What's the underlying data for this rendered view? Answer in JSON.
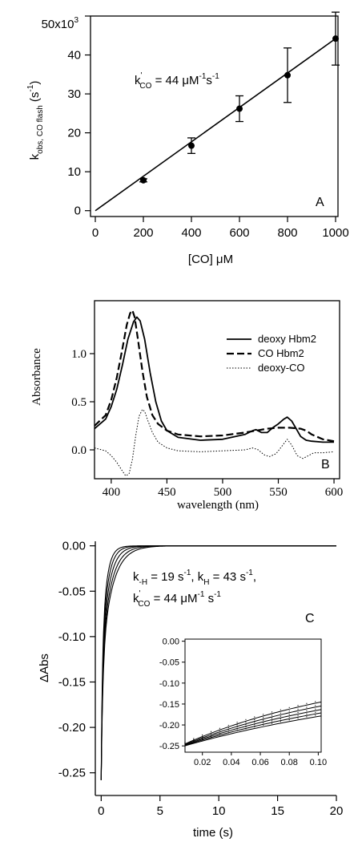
{
  "chart_data": [
    {
      "type": "scatter",
      "panel_label": "A",
      "xlabel": "[CO] μM",
      "ylabel_main": "k",
      "ylabel_sub": "obs, CO flash",
      "ylabel_unit_pre": " (s",
      "ylabel_unit_sup": "-1",
      "ylabel_unit_post": ")",
      "xlim": [
        -20,
        1010
      ],
      "ylim": [
        -1.5,
        50
      ],
      "xticks": [
        0,
        200,
        400,
        600,
        800,
        1000
      ],
      "yticks": [
        0,
        10,
        20,
        30,
        40
      ],
      "y_top_tick_label": "50x10",
      "y_top_tick_exp": "3",
      "points": [
        {
          "x": 200,
          "y": 7.8,
          "err": 0.4
        },
        {
          "x": 400,
          "y": 16.7,
          "err": 2.0
        },
        {
          "x": 600,
          "y": 26.2,
          "err": 3.3
        },
        {
          "x": 800,
          "y": 34.8,
          "err": 7.0
        },
        {
          "x": 1000,
          "y": 44.2,
          "err": 6.8
        }
      ],
      "fit_line": {
        "x": [
          0,
          1000
        ],
        "y": [
          0,
          44.2
        ]
      },
      "annotation": {
        "k_main": "k",
        "k_prime": "'",
        "k_sub": "CO",
        "text": " = 44 μM",
        "sup1": "-1",
        "mid": "s",
        "sup2": "-1"
      }
    },
    {
      "type": "line",
      "panel_label": "B",
      "xlabel": "wavelength (nm)",
      "ylabel": "Absorbance",
      "xlim": [
        385,
        605
      ],
      "ylim": [
        -0.3,
        1.55
      ],
      "xticks": [
        400,
        450,
        500,
        550,
        600
      ],
      "yticks": [
        0.0,
        0.5,
        1.0
      ],
      "ytick_labels": [
        "0.0",
        "0.5",
        "1.0"
      ],
      "legend": {
        "position": "top-right"
      },
      "series": [
        {
          "name": "deoxy Hbm2",
          "style": "solid",
          "x": [
            385,
            395,
            400,
            405,
            410,
            415,
            420,
            423,
            426,
            430,
            435,
            440,
            445,
            450,
            460,
            480,
            500,
            520,
            527,
            530,
            535,
            540,
            545,
            550,
            555,
            558,
            562,
            566,
            570,
            575,
            580,
            590,
            600
          ],
          "y": [
            0.22,
            0.32,
            0.45,
            0.63,
            0.88,
            1.15,
            1.33,
            1.38,
            1.34,
            1.15,
            0.8,
            0.5,
            0.3,
            0.2,
            0.13,
            0.1,
            0.11,
            0.16,
            0.2,
            0.21,
            0.18,
            0.18,
            0.23,
            0.27,
            0.32,
            0.34,
            0.3,
            0.22,
            0.14,
            0.1,
            0.09,
            0.08,
            0.08
          ]
        },
        {
          "name": "CO Hbm2",
          "style": "dashed",
          "x": [
            385,
            395,
            400,
            405,
            410,
            414,
            417,
            419,
            421,
            424,
            428,
            432,
            437,
            442,
            450,
            460,
            480,
            500,
            520,
            530,
            540,
            550,
            560,
            570,
            575,
            580,
            590,
            600
          ],
          "y": [
            0.25,
            0.36,
            0.52,
            0.75,
            1.05,
            1.3,
            1.42,
            1.45,
            1.38,
            1.15,
            0.82,
            0.55,
            0.36,
            0.27,
            0.2,
            0.16,
            0.14,
            0.15,
            0.18,
            0.2,
            0.22,
            0.23,
            0.23,
            0.22,
            0.2,
            0.16,
            0.11,
            0.09
          ]
        },
        {
          "name": "deoxy-CO",
          "style": "dotted",
          "x": [
            385,
            395,
            400,
            405,
            410,
            413,
            416,
            419,
            422,
            425,
            428,
            430,
            433,
            437,
            442,
            450,
            460,
            480,
            500,
            520,
            527,
            532,
            537,
            542,
            548,
            554,
            558,
            562,
            567,
            572,
            577,
            582,
            590,
            600
          ],
          "y": [
            0.02,
            -0.01,
            -0.06,
            -0.13,
            -0.22,
            -0.27,
            -0.25,
            -0.1,
            0.15,
            0.35,
            0.42,
            0.4,
            0.3,
            0.18,
            0.08,
            0.02,
            -0.01,
            -0.02,
            -0.01,
            0.0,
            0.02,
            0.0,
            -0.05,
            -0.07,
            -0.04,
            0.05,
            0.11,
            0.05,
            -0.06,
            -0.09,
            -0.06,
            -0.03,
            -0.03,
            -0.02
          ]
        }
      ]
    },
    {
      "type": "line",
      "panel_label": "C",
      "xlabel": "time (s)",
      "ylabel": "ΔAbs",
      "xlim": [
        -0.5,
        20
      ],
      "ylim": [
        -0.275,
        0.005
      ],
      "xticks": [
        0,
        5,
        10,
        15,
        20
      ],
      "yticks": [
        0.0,
        -0.05,
        -0.1,
        -0.15,
        -0.2,
        -0.25
      ],
      "ytick_labels": [
        "0.00",
        "-0.05",
        "-0.10",
        "-0.15",
        "-0.20",
        "-0.25"
      ],
      "annotation_line1": {
        "k1_main": "k",
        "k1_sub": "-H",
        "k1_text": " = 19 s",
        "k1_sup": "-1",
        "sep": ", ",
        "k2_main": "k",
        "k2_sub": "H",
        "k2_text": " = 43 s",
        "k2_sup": "-1",
        "end": ","
      },
      "annotation_line2": {
        "k_main": "k",
        "k_prime": "'",
        "k_sub": "CO",
        "text": " = 44 μM",
        "sup1": "-1",
        "mid": " s",
        "sup2": "-1"
      },
      "traces": [
        {
          "amp": 0.258,
          "k1": 7.0,
          "k2": 1.1
        },
        {
          "amp": 0.258,
          "k1": 7.8,
          "k2": 1.3
        },
        {
          "amp": 0.258,
          "k1": 8.6,
          "k2": 1.6
        },
        {
          "amp": 0.258,
          "k1": 9.4,
          "k2": 2.0
        },
        {
          "amp": 0.258,
          "k1": 10.3,
          "k2": 2.5
        }
      ],
      "inset": {
        "xlim": [
          0.008,
          0.102
        ],
        "ylim": [
          -0.265,
          0.005
        ],
        "xticks": [
          0.02,
          0.04,
          0.06,
          0.08,
          0.1
        ],
        "xtick_labels": [
          "0.02",
          "0.04",
          "0.06",
          "0.08",
          "0.10"
        ],
        "yticks": [
          0.0,
          -0.05,
          -0.1,
          -0.15,
          -0.2,
          -0.25
        ],
        "ytick_labels": [
          "0.00",
          "-0.05",
          "-0.10",
          "-0.15",
          "-0.20",
          "-0.25"
        ]
      }
    }
  ]
}
